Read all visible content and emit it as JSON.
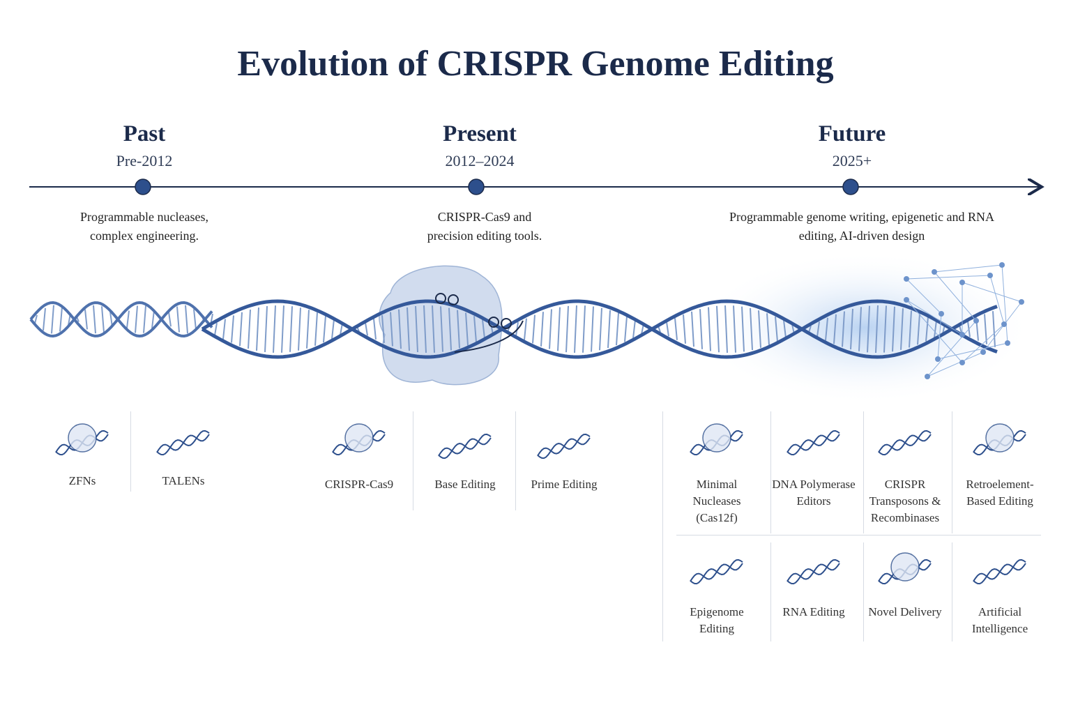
{
  "header": {
    "title": "Evolution of CRISPR Genome Editing"
  },
  "eras": [
    {
      "name": "Past",
      "years": "Pre-2012",
      "description": "Programmable nucleases, complex engineering.",
      "tools": [
        "ZFNs",
        "TALENs"
      ]
    },
    {
      "name": "Present",
      "years": "2012–2024",
      "description": "CRISPR-Cas9 and precision editing tools.",
      "tools": [
        "CRISPR-Cas9",
        "Base Editing",
        "Prime Editing"
      ]
    },
    {
      "name": "Future",
      "years": "2025+",
      "description": "Programmable genome writing, epigenetic and RNA editing, AI-driven design",
      "tools": [
        "Minimal Nucleases (Cas12f)",
        "DNA Polymerase Editors",
        "CRISPR Transposons & Recombinases",
        "Retroelement-Based Editing",
        "Epigenome Editing",
        "RNA Editing",
        "Novel Delivery",
        "Artificial Intelligence"
      ]
    }
  ]
}
